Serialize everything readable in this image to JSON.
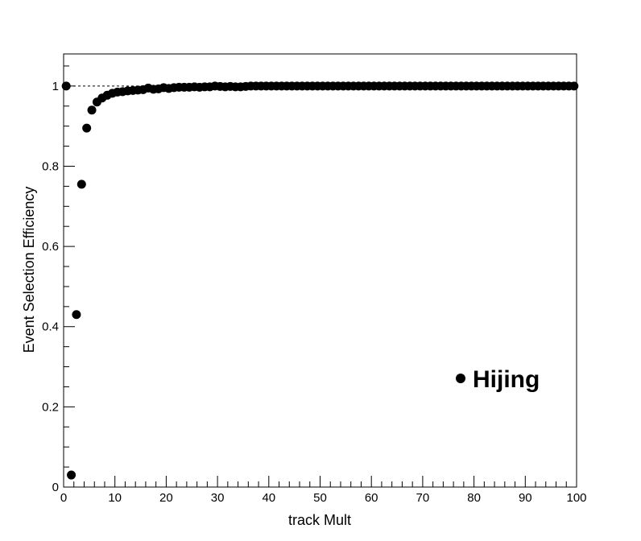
{
  "chart_data": {
    "type": "scatter",
    "title": "",
    "xlabel": "track Mult",
    "ylabel": "Event Selection Efficiency",
    "xlim": [
      0,
      100
    ],
    "ylim": [
      0,
      1.08
    ],
    "x_major_ticks": [
      0,
      10,
      20,
      30,
      40,
      50,
      60,
      70,
      80,
      90,
      100
    ],
    "x_tick_labels": [
      "0",
      "10",
      "20",
      "30",
      "40",
      "50",
      "60",
      "70",
      "80",
      "90",
      "100"
    ],
    "y_major_ticks": [
      0,
      0.2,
      0.4,
      0.6,
      0.8,
      1
    ],
    "y_tick_labels": [
      "0",
      "0.2",
      "0.4",
      "0.6",
      "0.8",
      "1"
    ],
    "reference_line": {
      "y": 1,
      "style": "dashed"
    },
    "marker_color": "#000000",
    "legend": {
      "placement": "bottom-right",
      "marker": "filled-circle"
    },
    "series": [
      {
        "name": "Hijing",
        "x": [
          0.5,
          1.5,
          2.5,
          3.5,
          4.5,
          5.5,
          6.5,
          7.5,
          8.5,
          9.5,
          10.5,
          11.5,
          12.5,
          13.5,
          14.5,
          15.5,
          16.5,
          17.5,
          18.5,
          19.5,
          20.5,
          21.5,
          22.5,
          23.5,
          24.5,
          25.5,
          26.5,
          27.5,
          28.5,
          29.5,
          30.5,
          31.5,
          32.5,
          33.5,
          34.5,
          35.5,
          36.5,
          37.5,
          38.5,
          39.5,
          40.5,
          41.5,
          42.5,
          43.5,
          44.5,
          45.5,
          46.5,
          47.5,
          48.5,
          49.5,
          50.5,
          51.5,
          52.5,
          53.5,
          54.5,
          55.5,
          56.5,
          57.5,
          58.5,
          59.5,
          60.5,
          61.5,
          62.5,
          63.5,
          64.5,
          65.5,
          66.5,
          67.5,
          68.5,
          69.5,
          70.5,
          71.5,
          72.5,
          73.5,
          74.5,
          75.5,
          76.5,
          77.5,
          78.5,
          79.5,
          80.5,
          81.5,
          82.5,
          83.5,
          84.5,
          85.5,
          86.5,
          87.5,
          88.5,
          89.5,
          90.5,
          91.5,
          92.5,
          93.5,
          94.5,
          95.5,
          96.5,
          97.5,
          98.5,
          99.5
        ],
        "y": [
          1.0,
          0.03,
          0.43,
          0.755,
          0.895,
          0.94,
          0.96,
          0.97,
          0.977,
          0.982,
          0.985,
          0.986,
          0.988,
          0.989,
          0.99,
          0.991,
          0.995,
          0.992,
          0.993,
          0.996,
          0.994,
          0.996,
          0.997,
          0.997,
          0.997,
          0.998,
          0.997,
          0.998,
          0.998,
          1.0,
          0.999,
          0.998,
          0.999,
          0.998,
          0.998,
          0.999,
          1.0,
          1.0,
          1.0,
          1.0,
          1.0,
          1.0,
          1.0,
          1.0,
          1.0,
          1.0,
          1.0,
          1.0,
          1.0,
          1.0,
          1.0,
          1.0,
          1.0,
          1.0,
          1.0,
          1.0,
          1.0,
          1.0,
          1.0,
          1.0,
          1.0,
          1.0,
          1.0,
          1.0,
          1.0,
          1.0,
          1.0,
          1.0,
          1.0,
          1.0,
          1.0,
          1.0,
          1.0,
          1.0,
          1.0,
          1.0,
          1.0,
          1.0,
          1.0,
          1.0,
          1.0,
          1.0,
          1.0,
          1.0,
          1.0,
          1.0,
          1.0,
          1.0,
          1.0,
          1.0,
          1.0,
          1.0,
          1.0,
          1.0,
          1.0,
          1.0,
          1.0,
          1.0,
          1.0,
          1.0
        ]
      }
    ]
  }
}
